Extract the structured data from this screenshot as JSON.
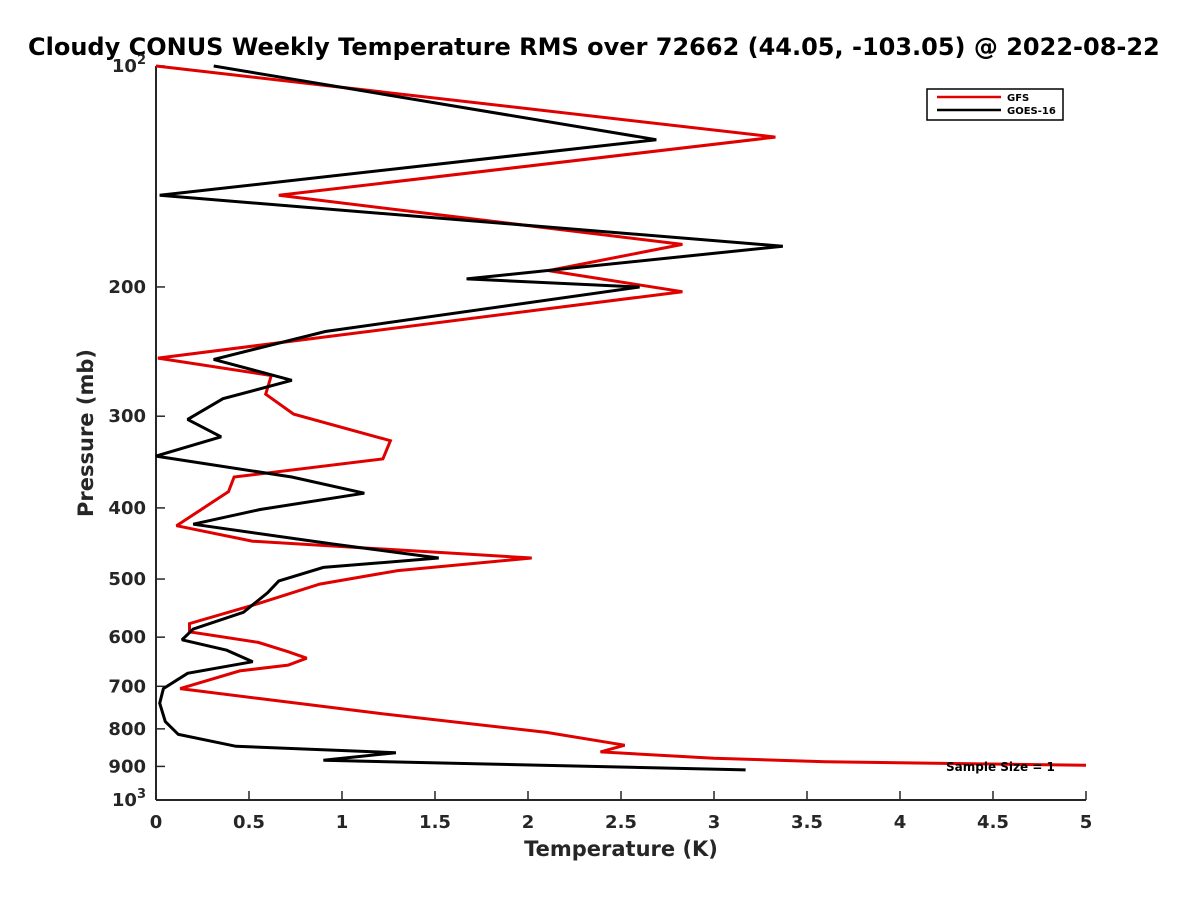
{
  "chart_data": {
    "type": "line",
    "title": "Cloudy CONUS Weekly Temperature RMS over 72662 (44.05, -103.05) @ 2022-08-22",
    "xlabel": "Temperature (K)",
    "ylabel": "Pressure (mb)",
    "xlim": [
      0,
      5
    ],
    "ylim": [
      100,
      1000
    ],
    "yscale": "log",
    "y_reversed": true,
    "grid": false,
    "legend_position": "top-right",
    "x_ticks": [
      "0",
      "0.5",
      "1",
      "1.5",
      "2",
      "2.5",
      "3",
      "3.5",
      "4",
      "4.5",
      "5"
    ],
    "y_ticks": [
      {
        "value": 100,
        "base": "10",
        "exp": "2"
      },
      {
        "value": 200,
        "label": "200"
      },
      {
        "value": 300,
        "label": "300"
      },
      {
        "value": 400,
        "label": "400"
      },
      {
        "value": 500,
        "label": "500"
      },
      {
        "value": 600,
        "label": "600"
      },
      {
        "value": 700,
        "label": "700"
      },
      {
        "value": 800,
        "label": "800"
      },
      {
        "value": 900,
        "label": "900"
      },
      {
        "value": 1000,
        "base": "10",
        "exp": "3"
      }
    ],
    "annotation": "Sample Size = 1",
    "series": [
      {
        "name": "GFS",
        "color": "#e00000",
        "points": [
          [
            0,
            100
          ],
          [
            3.33,
            125
          ],
          [
            0.66,
            150
          ],
          [
            2.83,
            175
          ],
          [
            2.11,
            190
          ],
          [
            2.83,
            203
          ],
          [
            0.01,
            250
          ],
          [
            0.62,
            264
          ],
          [
            0.59,
            280
          ],
          [
            0.74,
            298
          ],
          [
            1.26,
            324
          ],
          [
            1.22,
            343
          ],
          [
            0.42,
            363
          ],
          [
            0.39,
            380
          ],
          [
            0.27,
            398
          ],
          [
            0.11,
            423
          ],
          [
            0.52,
            444
          ],
          [
            2.02,
            468
          ],
          [
            1.3,
            487
          ],
          [
            0.88,
            508
          ],
          [
            0.55,
            540
          ],
          [
            0.18,
            575
          ],
          [
            0.18,
            590
          ],
          [
            0.55,
            610
          ],
          [
            0.71,
            628
          ],
          [
            0.81,
            641
          ],
          [
            0.71,
            655
          ],
          [
            0.45,
            667
          ],
          [
            0.13,
            705
          ],
          [
            0.55,
            727
          ],
          [
            1.2,
            762
          ],
          [
            2.1,
            809
          ],
          [
            2.52,
            842
          ],
          [
            2.39,
            860
          ],
          [
            3.0,
            877
          ],
          [
            3.6,
            887
          ],
          [
            5.0,
            897
          ]
        ]
      },
      {
        "name": "GOES-16",
        "color": "#000000",
        "points": [
          [
            0.31,
            100
          ],
          [
            2.69,
            126
          ],
          [
            0.02,
            150
          ],
          [
            3.37,
            176
          ],
          [
            1.67,
            195
          ],
          [
            2.6,
            200
          ],
          [
            0.91,
            230
          ],
          [
            0.31,
            251
          ],
          [
            0.73,
            268
          ],
          [
            0.36,
            284
          ],
          [
            0.17,
            303
          ],
          [
            0.35,
            320
          ],
          [
            0.0,
            340
          ],
          [
            0.73,
            363
          ],
          [
            1.12,
            382
          ],
          [
            0.56,
            402
          ],
          [
            0.2,
            421
          ],
          [
            0.95,
            448
          ],
          [
            1.52,
            468
          ],
          [
            0.9,
            482
          ],
          [
            0.66,
            503
          ],
          [
            0.6,
            522
          ],
          [
            0.47,
            555
          ],
          [
            0.2,
            585
          ],
          [
            0.14,
            605
          ],
          [
            0.38,
            625
          ],
          [
            0.52,
            648
          ],
          [
            0.17,
            672
          ],
          [
            0.04,
            705
          ],
          [
            0.02,
            738
          ],
          [
            0.05,
            782
          ],
          [
            0.12,
            814
          ],
          [
            0.43,
            845
          ],
          [
            1.29,
            862
          ],
          [
            0.9,
            883
          ],
          [
            3.17,
            910
          ]
        ]
      }
    ]
  }
}
